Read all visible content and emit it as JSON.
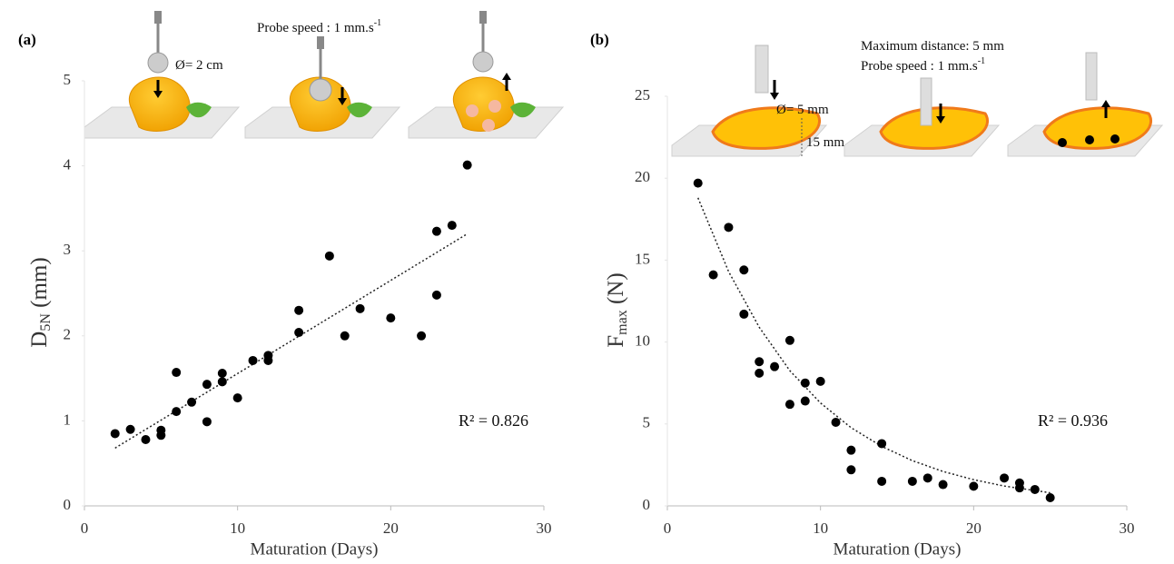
{
  "chart_data": [
    {
      "type": "scatter",
      "label": "(a)",
      "y_label": {
        "main": "D",
        "sub": "5N",
        "unit": " (mm)"
      },
      "x_label": "Maturation (Days)",
      "x": [
        2,
        3,
        4,
        5,
        5,
        6,
        6,
        7,
        8,
        8,
        9,
        9,
        10,
        11,
        12,
        12,
        14,
        14,
        16,
        17,
        18,
        20,
        22,
        23,
        23,
        24,
        25
      ],
      "values": [
        0.85,
        0.9,
        0.78,
        0.89,
        0.83,
        1.57,
        1.11,
        1.22,
        1.43,
        0.99,
        1.56,
        1.46,
        1.27,
        1.71,
        1.77,
        1.71,
        2.3,
        2.04,
        2.94,
        2.0,
        2.32,
        2.21,
        2.0,
        3.23,
        2.48,
        3.3,
        4.01
      ],
      "color": "#000000",
      "trendline": {
        "x": [
          2,
          25
        ],
        "values": [
          0.68,
          3.2
        ]
      },
      "xlim": [
        0,
        30
      ],
      "xticks": [
        0,
        10,
        20,
        30
      ],
      "ylim": [
        0,
        5
      ],
      "yticks": [
        0,
        1,
        2,
        3,
        4,
        5
      ],
      "annotations": [
        {
          "text": "Ø= 2 cm"
        },
        {
          "text": "Probe speed : 1 mm.s",
          "sup": "-1"
        },
        {
          "text": "R² = 0.826"
        }
      ]
    },
    {
      "type": "scatter",
      "label": "(b)",
      "y_label": {
        "main": "F",
        "sub": "max",
        "unit": " (N)"
      },
      "x_label": "Maturation (Days)",
      "x": [
        2,
        3,
        4,
        5,
        5,
        6,
        6,
        7,
        8,
        8,
        9,
        9,
        10,
        11,
        12,
        12,
        14,
        14,
        16,
        17,
        18,
        20,
        22,
        23,
        23,
        24,
        25
      ],
      "values": [
        19.7,
        14.1,
        17.0,
        14.4,
        11.7,
        8.8,
        8.1,
        8.5,
        10.1,
        6.2,
        7.5,
        6.4,
        7.6,
        5.1,
        3.4,
        2.2,
        3.8,
        1.5,
        1.5,
        1.7,
        1.3,
        1.2,
        1.7,
        1.4,
        1.1,
        1.0,
        0.5
      ],
      "color": "#000000",
      "trendline": {
        "x": [
          2,
          4,
          6,
          8,
          10,
          12,
          14,
          16,
          18,
          20,
          22,
          25
        ],
        "values": [
          18.8,
          14.3,
          10.9,
          8.25,
          6.28,
          4.77,
          3.63,
          2.76,
          2.1,
          1.6,
          1.21,
          0.8
        ]
      },
      "xlim": [
        0,
        30
      ],
      "xticks": [
        0,
        10,
        20,
        30
      ],
      "ylim": [
        0,
        25
      ],
      "yticks": [
        0,
        5,
        10,
        15,
        20,
        25
      ],
      "annotations": [
        {
          "text": "Maximum distance: 5 mm"
        },
        {
          "text": "Probe speed : 1 mm.s",
          "sup": "-1"
        },
        {
          "text": "Ø= 5 mm"
        },
        {
          "text": "15 mm"
        },
        {
          "text": "R² = 0.936"
        }
      ]
    }
  ]
}
